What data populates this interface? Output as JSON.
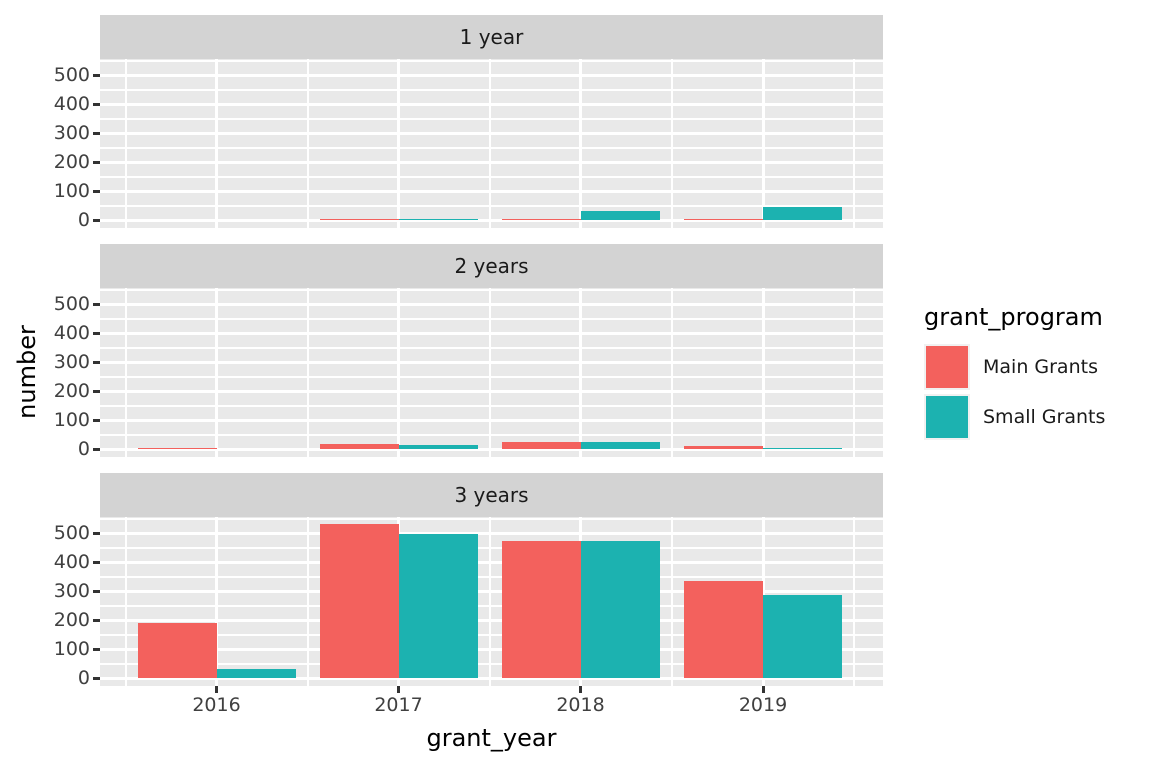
{
  "axes": {
    "x_title": "grant_year",
    "y_title": "number"
  },
  "legend": {
    "title": "grant_program",
    "items": [
      {
        "label": "Main Grants",
        "color": "#F3615D"
      },
      {
        "label": "Small Grants",
        "color": "#1CB2B0"
      }
    ]
  },
  "chart_data": {
    "type": "bar",
    "title": "",
    "xlabel": "grant_year",
    "ylabel": "number",
    "categories": [
      "2016",
      "2017",
      "2018",
      "2019"
    ],
    "yticks": [
      0,
      100,
      200,
      300,
      400,
      500
    ],
    "y_minor_ticks": [
      50,
      150,
      250,
      350,
      450,
      550
    ],
    "ylim": [
      -27,
      557
    ],
    "grid": true,
    "legend_title": "grant_program",
    "legend_position": "right",
    "facets": [
      {
        "label": "1 year",
        "series": [
          {
            "name": "Main Grants",
            "values": [
              0,
              2,
              2,
              4
            ]
          },
          {
            "name": "Small Grants",
            "values": [
              0,
              1,
              30,
              45
            ]
          }
        ]
      },
      {
        "label": "2 years",
        "series": [
          {
            "name": "Main Grants",
            "values": [
              2,
              16,
              25,
              9
            ]
          },
          {
            "name": "Small Grants",
            "values": [
              0,
              13,
              23,
              3
            ]
          }
        ]
      },
      {
        "label": "3 years",
        "series": [
          {
            "name": "Main Grants",
            "values": [
              190,
              532,
              473,
              335
            ]
          },
          {
            "name": "Small Grants",
            "values": [
              30,
              497,
              471,
              285
            ]
          }
        ]
      }
    ],
    "colors": {
      "Main Grants": "#F3615D",
      "Small Grants": "#1CB2B0"
    },
    "style": {
      "panel_bg": "#E9E9E9",
      "strip_bg": "#D3D3D3",
      "grid_color": "#FFFFFF"
    }
  }
}
